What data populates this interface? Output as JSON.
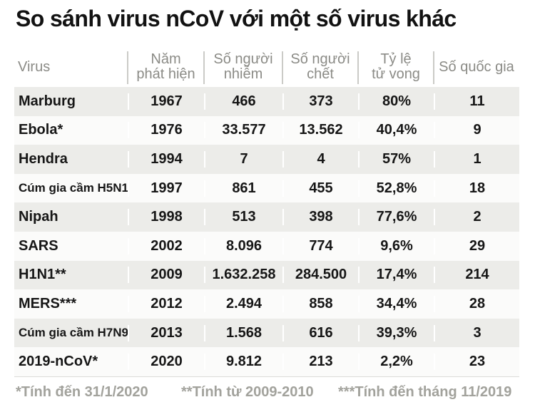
{
  "title": "So sánh virus nCoV với một số virus khác",
  "header_display": [
    "Virus",
    "Năm\nphát hiện",
    "Số người\nnhiễm",
    "Số người\nchết",
    "Tỷ lệ\ntử vong",
    "Số quốc gia"
  ],
  "chart_data": {
    "type": "table",
    "title": "So sánh virus nCoV với một số virus khác",
    "columns": [
      "Virus",
      "Năm phát hiện",
      "Số người nhiễm",
      "Số người chết",
      "Tỷ lệ tử vong",
      "Số quốc gia"
    ],
    "rows": [
      [
        "Marburg",
        "1967",
        "466",
        "373",
        "80%",
        "11"
      ],
      [
        "Ebola*",
        "1976",
        "33.577",
        "13.562",
        "40,4%",
        "9"
      ],
      [
        "Hendra",
        "1994",
        "7",
        "4",
        "57%",
        "1"
      ],
      [
        "Cúm gia cầm H5N1",
        "1997",
        "861",
        "455",
        "52,8%",
        "18"
      ],
      [
        "Nipah",
        "1998",
        "513",
        "398",
        "77,6%",
        "2"
      ],
      [
        "SARS",
        "2002",
        "8.096",
        "774",
        "9,6%",
        "29"
      ],
      [
        "H1N1**",
        "2009",
        "1.632.258",
        "284.500",
        "17,4%",
        "214"
      ],
      [
        "MERS***",
        "2012",
        "2.494",
        "858",
        "34,4%",
        "28"
      ],
      [
        "Cúm gia cầm H7N9",
        "2013",
        "1.568",
        "616",
        "39,3%",
        "3"
      ],
      [
        "2019-nCoV*",
        "2020",
        "9.812",
        "213",
        "2,2%",
        "23"
      ]
    ],
    "footnotes": [
      "*Tính đến 31/1/2020",
      "**Tính từ 2009-2010",
      "***Tính đến tháng 11/2019"
    ],
    "layout": {
      "banded_rows": true,
      "first_banded_row_index": 0,
      "header_dividers": true
    }
  },
  "colors": {
    "band_row": "#ECECE9",
    "plain_row": "#FBFBFA",
    "header_text": "#8B8B86",
    "body_text": "#161616",
    "title_text": "#121212",
    "footnote_text": "#A2A29C",
    "header_divider": "#CBCBC7",
    "table_bottom_line": "#DCDCD8",
    "background": "#FFFFFF"
  }
}
